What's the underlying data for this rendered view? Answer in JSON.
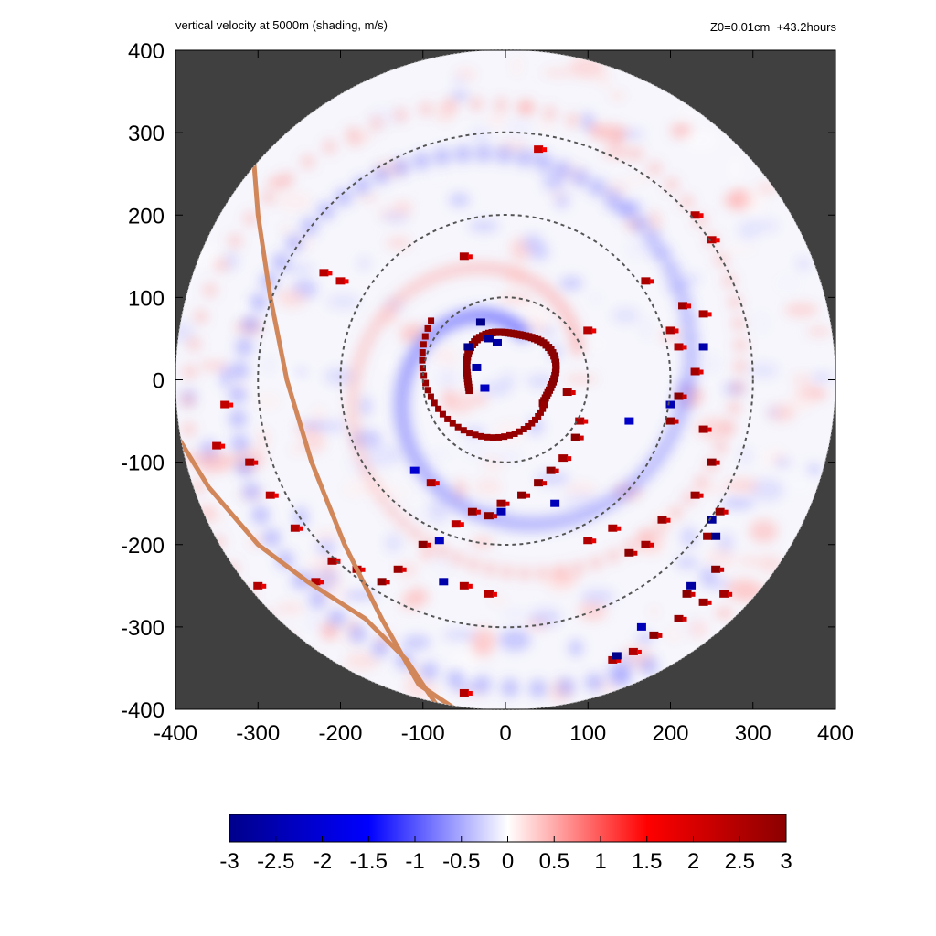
{
  "header": {
    "title": "vertical velocity at 5000m (shading, m/s)",
    "info": "Z0=0.01cm  +43.2hours"
  },
  "colors": {
    "background_outside_domain": "#404040",
    "colormap": [
      "#00008b",
      "#0000ff",
      "#ffffff",
      "#ff0000",
      "#8b0000"
    ],
    "track": "#d2875a",
    "rings": "#555555"
  },
  "chart_data": {
    "type": "heatmap",
    "title": "vertical velocity at 5000m (shading, m/s)",
    "annotation": "Z0=0.01cm  +43.2hours",
    "xlim": [
      -400,
      400
    ],
    "ylim": [
      -400,
      400
    ],
    "x_ticks": [
      -400,
      -300,
      -200,
      -100,
      0,
      100,
      200,
      300,
      400
    ],
    "y_ticks": [
      -400,
      -300,
      -200,
      -100,
      0,
      100,
      200,
      300,
      400
    ],
    "domain_radius": 400,
    "reference_circles_radius": [
      100,
      200,
      300
    ],
    "colorbar": {
      "min": -3,
      "max": 3,
      "ticks": [
        -3,
        -2.5,
        -2,
        -1.5,
        -1,
        -0.5,
        0,
        0.5,
        1,
        1.5,
        2,
        2.5,
        3
      ],
      "tick_labels": [
        "-3",
        "-2.5",
        "-2",
        "-1.5",
        "-1",
        "-0.5",
        "0",
        "0.5",
        "1",
        "1.5",
        "2",
        "2.5",
        "3"
      ],
      "colormap": "blue-white-red"
    },
    "eyewall": {
      "center": [
        5,
        5
      ],
      "radius": 55,
      "peak_value": 3
    },
    "spiral_band": {
      "description_values": "positive updraft cells along spiral rainband (m/s)",
      "peak_value": 3,
      "trough_value": -3
    },
    "track_lines": [
      {
        "points": [
          [
            -305,
            265
          ],
          [
            -300,
            200
          ],
          [
            -285,
            100
          ],
          [
            -265,
            0
          ],
          [
            -235,
            -100
          ],
          [
            -195,
            -200
          ],
          [
            -150,
            -290
          ],
          [
            -105,
            -370
          ],
          [
            -60,
            -400
          ]
        ]
      },
      {
        "points": [
          [
            -400,
            -65
          ],
          [
            -360,
            -130
          ],
          [
            -300,
            -200
          ],
          [
            -240,
            -245
          ],
          [
            -170,
            -290
          ],
          [
            -120,
            -340
          ],
          [
            -80,
            -400
          ]
        ]
      }
    ],
    "updraft_cells": [
      [
        -40,
        -160,
        3
      ],
      [
        -20,
        -165,
        3
      ],
      [
        -5,
        -150,
        2.8
      ],
      [
        20,
        -140,
        3
      ],
      [
        40,
        -125,
        3
      ],
      [
        55,
        -110,
        3
      ],
      [
        70,
        -95,
        2.7
      ],
      [
        85,
        -70,
        3
      ],
      [
        90,
        -50,
        2.5
      ],
      [
        75,
        -15,
        2.8
      ],
      [
        -90,
        -125,
        2.6
      ],
      [
        -100,
        -200,
        3
      ],
      [
        -60,
        -175,
        2.4
      ],
      [
        -130,
        -230,
        2.8
      ],
      [
        -150,
        -245,
        3
      ],
      [
        -180,
        -230,
        2.6
      ],
      [
        -210,
        -220,
        2.7
      ],
      [
        -255,
        -180,
        2.5
      ],
      [
        -285,
        -140,
        2.4
      ],
      [
        -310,
        -100,
        2.6
      ],
      [
        -340,
        -30,
        2.3
      ],
      [
        -230,
        -245,
        2.5
      ],
      [
        -50,
        -250,
        2.6
      ],
      [
        -20,
        -260,
        2.4
      ],
      [
        100,
        -195,
        2.5
      ],
      [
        130,
        -180,
        2.6
      ],
      [
        150,
        -210,
        3
      ],
      [
        170,
        -200,
        2.7
      ],
      [
        190,
        -170,
        2.8
      ],
      [
        230,
        -140,
        2.8
      ],
      [
        250,
        -100,
        3
      ],
      [
        240,
        -60,
        2.7
      ],
      [
        260,
        -160,
        2.9
      ],
      [
        245,
        -190,
        2.8
      ],
      [
        255,
        -230,
        3
      ],
      [
        265,
        -260,
        2.7
      ],
      [
        240,
        -270,
        2.8
      ],
      [
        220,
        -260,
        3
      ],
      [
        210,
        -290,
        2.8
      ],
      [
        180,
        -310,
        3
      ],
      [
        155,
        -330,
        2.5
      ],
      [
        130,
        -340,
        2.6
      ],
      [
        200,
        -50,
        2.9
      ],
      [
        210,
        -20,
        3
      ],
      [
        230,
        10,
        2.7
      ],
      [
        210,
        40,
        2.5
      ],
      [
        200,
        60,
        2.6
      ],
      [
        215,
        90,
        2.8
      ],
      [
        240,
        80,
        2.6
      ],
      [
        230,
        200,
        2.5
      ],
      [
        250,
        170,
        2.4
      ],
      [
        -50,
        150,
        2.6
      ],
      [
        -220,
        130,
        2.4
      ],
      [
        -200,
        120,
        2.3
      ],
      [
        40,
        280,
        2.2
      ],
      [
        -300,
        -250,
        2.5
      ],
      [
        -350,
        -80,
        2.4
      ],
      [
        -50,
        -380,
        2.5
      ],
      [
        170,
        120,
        2.6
      ],
      [
        100,
        60,
        2.4
      ]
    ],
    "downdraft_cells": [
      [
        -30,
        70,
        -3
      ],
      [
        -20,
        50,
        -2.8
      ],
      [
        -45,
        40,
        -3
      ],
      [
        -35,
        15,
        -2.6
      ],
      [
        -25,
        -10,
        -2.3
      ],
      [
        -10,
        45,
        -2.7
      ],
      [
        -5,
        -160,
        -2.5
      ],
      [
        240,
        40,
        -2.6
      ],
      [
        250,
        -170,
        -2.8
      ],
      [
        255,
        -190,
        -3
      ],
      [
        225,
        -250,
        -2.7
      ],
      [
        135,
        -335,
        -3
      ],
      [
        165,
        -300,
        -2.4
      ],
      [
        -75,
        -245,
        -2.6
      ],
      [
        -80,
        -195,
        -2.3
      ],
      [
        200,
        -30,
        -2.5
      ],
      [
        150,
        -50,
        -2.2
      ],
      [
        -110,
        -110,
        -2.1
      ],
      [
        60,
        -150,
        -2.4
      ]
    ]
  }
}
